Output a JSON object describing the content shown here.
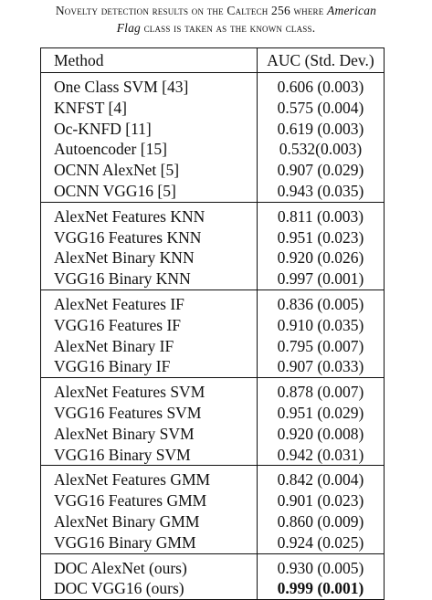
{
  "caption": {
    "part1": "Novelty detection results on the Caltech 256 where ",
    "part2": "American",
    "part3": "Flag",
    "part4": " class is taken as the known class."
  },
  "table": {
    "headers": [
      "Method",
      "AUC (Std. Dev.)"
    ],
    "groups": [
      [
        {
          "method": "One Class SVM [43]",
          "auc": "0.606 (0.003)"
        },
        {
          "method": "KNFST [4]",
          "auc": "0.575 (0.004)"
        },
        {
          "method": "Oc-KNFD [11]",
          "auc": "0.619 (0.003)"
        },
        {
          "method": "Autoencoder [15]",
          "auc": "0.532(0.003)"
        },
        {
          "method": "OCNN AlexNet [5]",
          "auc": "0.907 (0.029)"
        },
        {
          "method": "OCNN VGG16 [5]",
          "auc": "0.943 (0.035)"
        }
      ],
      [
        {
          "method": "AlexNet Features KNN",
          "auc": "0.811 (0.003)"
        },
        {
          "method": "VGG16 Features KNN",
          "auc": "0.951 (0.023)"
        },
        {
          "method": "AlexNet Binary KNN",
          "auc": "0.920 (0.026)"
        },
        {
          "method": "VGG16 Binary KNN",
          "auc": "0.997 (0.001)"
        }
      ],
      [
        {
          "method": "AlexNet Features IF",
          "auc": "0.836 (0.005)"
        },
        {
          "method": "VGG16 Features IF",
          "auc": "0.910 (0.035)"
        },
        {
          "method": "AlexNet Binary IF",
          "auc": "0.795 (0.007)"
        },
        {
          "method": "VGG16 Binary IF",
          "auc": "0.907 (0.033)"
        }
      ],
      [
        {
          "method": "AlexNet Features SVM",
          "auc": "0.878 (0.007)"
        },
        {
          "method": "VGG16 Features SVM",
          "auc": "0.951 (0.029)"
        },
        {
          "method": "AlexNet Binary SVM",
          "auc": "0.920 (0.008)"
        },
        {
          "method": "VGG16 Binary SVM",
          "auc": "0.942 (0.031)"
        }
      ],
      [
        {
          "method": "AlexNet Features GMM",
          "auc": "0.842 (0.004)"
        },
        {
          "method": "VGG16 Features GMM",
          "auc": "0.901 (0.023)"
        },
        {
          "method": "AlexNet Binary GMM",
          "auc": "0.860 (0.009)"
        },
        {
          "method": "VGG16 Binary GMM",
          "auc": "0.924 (0.025)"
        }
      ],
      [
        {
          "method": "DOC AlexNet (ours)",
          "auc": "0.930 (0.005)"
        },
        {
          "method": "DOC VGG16 (ours)",
          "auc": "0.999 (0.001)",
          "bold": true
        }
      ]
    ]
  }
}
